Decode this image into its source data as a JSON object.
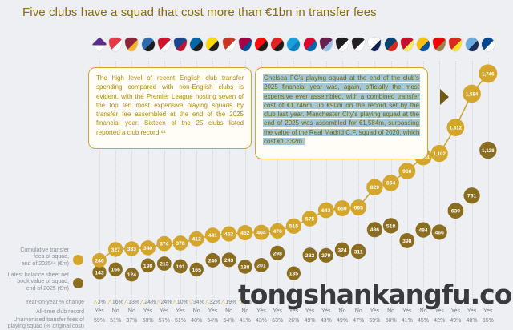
{
  "title": "Five clubs have a squad that cost more than €1bn in transfer fees",
  "annotations": {
    "box1": "The high level of recent English club transfer spending compared with non-English clubs is evident, with the Premier League hosting seven of the top ten most expensive playing squads by transfer fee assembled at the end of the 2025 financial year. Sixteen of the 25 clubs listed reported a club record.⁶³",
    "box2": "Chelsea FC's playing squad at the end of the club's 2025 financial year was, again, officially the most expensive ever assembled, with a combined transfer cost of €1,746m, up €90m on the record set by the club last year. Manchester City's playing squad at the end of 2025 was assembled for €1,584m, surpassing the value of the Real Madrid C.F. squad of 2020, which cost €1,332m."
  },
  "row_labels": {
    "cumulative": "Cumulative transfer\nfees of squad,\nend of 2025⁶⁴ (€m)",
    "net_book": "Latest balance sheet net\nbook value of squad,\nend of 2025 (€m)",
    "yoy": "Year-on-year % change",
    "record": "All-time club record",
    "unamortised": "Unamortised transfer fees of\nplaying squad (% original cost)"
  },
  "watermark": "tongshankangfu.com",
  "colors": {
    "background": "#edeff2",
    "title": "#8a6e00",
    "bubble_light": "#d4a62c",
    "bubble_dark": "#8a6d1e",
    "line": "#c9a227",
    "note_border": "#cfa72e",
    "note_text": "#b18a00",
    "highlight": "#a3c7d7",
    "label_gray": "#8a8f99",
    "watermark": "#3a3a3c"
  },
  "chart_data": {
    "type": "bubble",
    "title": "Five clubs have a squad that cost more than €1bn in transfer fees",
    "ylabel": "€m",
    "ylim": [
      0,
      1800
    ],
    "legend_position": "left",
    "grid": "vertical-dotted",
    "categories": [
      "Fiorentina",
      "Monaco",
      "Roma",
      "Atalanta",
      "Ajax",
      "Crystal Palace",
      "Inter Milan",
      "Borussia Dortmund",
      "Atlético de Madrid",
      "FC Barcelona",
      "AC Milan",
      "Bayer Leverkusen",
      "Napoli",
      "Bayern Munich",
      "Aston Villa",
      "Juventus",
      "Newcastle United",
      "Tottenham Hotspur",
      "Paris Saint-Germain",
      "Liverpool",
      "Real Madrid",
      "Arsenal",
      "Manchester United",
      "Manchester City",
      "Chelsea"
    ],
    "series": [
      {
        "name": "Cumulative transfer fees of squad, end of 2025 (€m)",
        "values": [
          240,
          327,
          333,
          340,
          374,
          378,
          412,
          441,
          452,
          462,
          464,
          476,
          515,
          575,
          643,
          659,
          665,
          829,
          864,
          960,
          1074,
          1102,
          1312,
          1584,
          1746
        ]
      },
      {
        "name": "Latest balance sheet net book value of squad, end of 2025 (€m)",
        "values": [
          143,
          166,
          124,
          198,
          213,
          191,
          165,
          240,
          243,
          188,
          201,
          298,
          135,
          282,
          279,
          324,
          311,
          486,
          518,
          398,
          484,
          466,
          639,
          761,
          1128
        ]
      }
    ],
    "yoy_change": [
      "△3%",
      "△16%",
      "△13%",
      "△24%",
      "△24%",
      "△10%",
      "▽34%",
      "△32%",
      "△19%",
      "▽3%",
      null,
      null,
      null,
      null,
      null,
      null,
      null,
      null,
      null,
      null,
      null,
      null,
      null,
      null,
      null
    ],
    "all_time_record": [
      "Yes",
      "No",
      "No",
      "Yes",
      "Yes",
      "Yes",
      "No",
      "Yes",
      "No",
      "No",
      "Yes",
      "Yes",
      "Yes",
      "Yes",
      "Yes",
      "No",
      "No",
      "Yes",
      "No",
      "Yes",
      "No",
      "Yes",
      "Yes",
      "Yes",
      "Yes"
    ],
    "unamortised_pct": [
      "59%",
      "51%",
      "37%",
      "58%",
      "57%",
      "51%",
      "40%",
      "54%",
      "54%",
      "41%",
      "43%",
      "63%",
      "26%",
      "49%",
      "43%",
      "49%",
      "47%",
      "59%",
      "60%",
      "41%",
      "45%",
      "42%",
      "49%",
      "48%",
      "65%"
    ],
    "crests": [
      {
        "shape": "diamond",
        "c1": "#5b2d8e",
        "c2": "#ffffff"
      },
      {
        "shape": "shield",
        "c1": "#e63946",
        "c2": "#ffffff"
      },
      {
        "shape": "shield",
        "c1": "#8e2438",
        "c2": "#f3b229"
      },
      {
        "shape": "circle",
        "c1": "#2b6bb1",
        "c2": "#1d1d1b"
      },
      {
        "shape": "shield",
        "c1": "#d2122e",
        "c2": "#ffffff"
      },
      {
        "shape": "shield",
        "c1": "#1b458f",
        "c2": "#c4122e"
      },
      {
        "shape": "circle",
        "c1": "#0068a8",
        "c2": "#1d1d1b"
      },
      {
        "shape": "circle",
        "c1": "#ffd900",
        "c2": "#1d1d1b"
      },
      {
        "shape": "shield",
        "c1": "#cb3524",
        "c2": "#ffffff"
      },
      {
        "shape": "shield",
        "c1": "#a50044",
        "c2": "#004d98"
      },
      {
        "shape": "circle",
        "c1": "#fb090b",
        "c2": "#1d1d1b"
      },
      {
        "shape": "circle",
        "c1": "#e32221",
        "c2": "#1d1d1b"
      },
      {
        "shape": "circle",
        "c1": "#199fda",
        "c2": "#0c7ec2"
      },
      {
        "shape": "circle",
        "c1": "#dc052d",
        "c2": "#0066b2"
      },
      {
        "shape": "shield",
        "c1": "#67204e",
        "c2": "#95bfe5"
      },
      {
        "shape": "shield",
        "c1": "#1d1d1b",
        "c2": "#ffffff"
      },
      {
        "shape": "shield",
        "c1": "#241f20",
        "c2": "#ffffff"
      },
      {
        "shape": "shield",
        "c1": "#ffffff",
        "c2": "#132257"
      },
      {
        "shape": "circle",
        "c1": "#004170",
        "c2": "#da291c"
      },
      {
        "shape": "shield",
        "c1": "#c8102e",
        "c2": "#f6eb61"
      },
      {
        "shape": "circle",
        "c1": "#febe10",
        "c2": "#00529f"
      },
      {
        "shape": "shield",
        "c1": "#ef0107",
        "c2": "#9c824a"
      },
      {
        "shape": "shield",
        "c1": "#da291c",
        "c2": "#fbe122"
      },
      {
        "shape": "circle",
        "c1": "#6cabdd",
        "c2": "#1c2c5b"
      },
      {
        "shape": "circle",
        "c1": "#034694",
        "c2": "#ffffff"
      }
    ]
  }
}
